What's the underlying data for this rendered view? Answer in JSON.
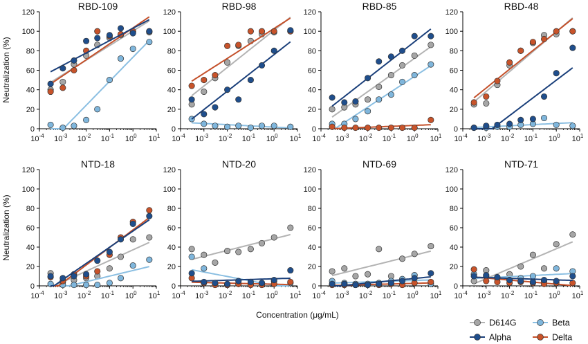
{
  "figure": {
    "ylabel": "Neutralization (%)",
    "xlabel": "Concentration (μg/mL)"
  },
  "series_styles": [
    {
      "name": "D614G",
      "color": "#a6a6a6",
      "line": "#b3b3b3"
    },
    {
      "name": "Alpha",
      "color": "#1f4e8c",
      "line": "#1a3f7a"
    },
    {
      "name": "Beta",
      "color": "#7fb6dc",
      "line": "#8bbfe2"
    },
    {
      "name": "Delta",
      "color": "#c8532a",
      "line": "#c4502a"
    }
  ],
  "legend": {
    "placement": "bottom-right",
    "items": [
      "D614G",
      "Beta",
      "Alpha",
      "Delta"
    ]
  },
  "chart_data": [
    {
      "type": "scatter",
      "title": "RBD-109",
      "xscale": "log",
      "xlim": [
        0.0001,
        10
      ],
      "ylim": [
        0,
        120
      ],
      "x": [
        0.0003,
        0.001,
        0.003,
        0.01,
        0.03,
        0.1,
        0.3,
        1,
        5
      ],
      "series": [
        {
          "name": "D614G",
          "values": [
            40,
            48,
            66,
            75,
            86,
            93,
            96,
            99,
            99
          ]
        },
        {
          "name": "Alpha",
          "values": [
            46,
            62,
            70,
            90,
            93,
            96,
            103,
            98,
            100
          ]
        },
        {
          "name": "Beta",
          "values": [
            4,
            1,
            3,
            9,
            20,
            50,
            72,
            82,
            89
          ]
        },
        {
          "name": "Delta",
          "values": [
            38,
            42,
            60,
            80,
            100,
            95,
            97,
            100,
            100
          ]
        }
      ]
    },
    {
      "type": "scatter",
      "title": "RBD-98",
      "xscale": "log",
      "xlim": [
        0.0001,
        10
      ],
      "ylim": [
        0,
        120
      ],
      "x": [
        0.0003,
        0.001,
        0.003,
        0.01,
        0.03,
        0.1,
        0.3,
        1,
        5
      ],
      "series": [
        {
          "name": "D614G",
          "values": [
            25,
            38,
            52,
            68,
            85,
            90,
            97,
            99,
            100
          ]
        },
        {
          "name": "Alpha",
          "values": [
            30,
            15,
            22,
            40,
            30,
            50,
            65,
            80,
            101
          ]
        },
        {
          "name": "Beta",
          "values": [
            10,
            5,
            3,
            2,
            3,
            1,
            3,
            3,
            2
          ]
        },
        {
          "name": "Delta",
          "values": [
            44,
            50,
            55,
            85,
            86,
            100,
            100,
            100,
            100
          ]
        }
      ]
    },
    {
      "type": "scatter",
      "title": "RBD-85",
      "xscale": "log",
      "xlim": [
        0.0001,
        10
      ],
      "ylim": [
        0,
        120
      ],
      "x": [
        0.0003,
        0.001,
        0.003,
        0.01,
        0.03,
        0.1,
        0.3,
        1,
        5
      ],
      "series": [
        {
          "name": "D614G",
          "values": [
            20,
            22,
            25,
            30,
            43,
            55,
            65,
            75,
            86
          ]
        },
        {
          "name": "Alpha",
          "values": [
            32,
            27,
            28,
            52,
            69,
            74,
            80,
            95,
            95
          ]
        },
        {
          "name": "Beta",
          "values": [
            5,
            5,
            10,
            18,
            30,
            35,
            48,
            55,
            66
          ]
        },
        {
          "name": "Delta",
          "values": [
            2,
            1,
            1,
            1,
            1,
            1,
            1,
            1,
            9
          ]
        }
      ]
    },
    {
      "type": "scatter",
      "title": "RBD-48",
      "xscale": "log",
      "xlim": [
        0.0001,
        10
      ],
      "ylim": [
        0,
        120
      ],
      "x": [
        0.0003,
        0.001,
        0.003,
        0.01,
        0.03,
        0.1,
        0.3,
        1,
        5
      ],
      "series": [
        {
          "name": "D614G",
          "values": [
            25,
            26,
            45,
            65,
            80,
            88,
            96,
            97,
            100
          ]
        },
        {
          "name": "Alpha",
          "values": [
            1,
            3,
            4,
            5,
            9,
            10,
            33,
            57,
            83
          ]
        },
        {
          "name": "Beta",
          "values": [
            1,
            1,
            2,
            2,
            4,
            5,
            11,
            4,
            3
          ]
        },
        {
          "name": "Delta",
          "values": [
            27,
            33,
            49,
            68,
            80,
            89,
            92,
            100,
            100
          ]
        }
      ]
    },
    {
      "type": "scatter",
      "title": "NTD-18",
      "xscale": "log",
      "xlim": [
        0.0001,
        10
      ],
      "ylim": [
        0,
        120
      ],
      "x": [
        0.0003,
        0.001,
        0.003,
        0.01,
        0.03,
        0.1,
        0.3,
        1,
        5
      ],
      "series": [
        {
          "name": "D614G",
          "values": [
            13,
            4,
            6,
            8,
            10,
            18,
            30,
            48,
            50
          ]
        },
        {
          "name": "Alpha",
          "values": [
            10,
            8,
            10,
            12,
            26,
            35,
            48,
            64,
            72
          ]
        },
        {
          "name": "Beta",
          "values": [
            2,
            1,
            1,
            1,
            1,
            3,
            8,
            21,
            27
          ]
        },
        {
          "name": "Delta",
          "values": [
            9,
            5,
            12,
            10,
            15,
            32,
            50,
            66,
            78
          ]
        }
      ]
    },
    {
      "type": "scatter",
      "title": "NTD-20",
      "xscale": "log",
      "xlim": [
        0.0001,
        10
      ],
      "ylim": [
        0,
        120
      ],
      "x": [
        0.0003,
        0.001,
        0.003,
        0.01,
        0.03,
        0.1,
        0.3,
        1,
        5
      ],
      "series": [
        {
          "name": "D614G",
          "values": [
            38,
            32,
            24,
            36,
            35,
            38,
            44,
            50,
            60
          ]
        },
        {
          "name": "Alpha",
          "values": [
            13,
            4,
            3,
            2,
            5,
            4,
            3,
            6,
            16
          ]
        },
        {
          "name": "Beta",
          "values": [
            30,
            18,
            2,
            1,
            2,
            2,
            3,
            5,
            3
          ]
        },
        {
          "name": "Delta",
          "values": [
            8,
            3,
            1,
            1,
            2,
            1,
            1,
            2,
            4
          ]
        }
      ]
    },
    {
      "type": "scatter",
      "title": "NTD-69",
      "xscale": "log",
      "xlim": [
        0.0001,
        10
      ],
      "ylim": [
        0,
        120
      ],
      "x": [
        0.0003,
        0.001,
        0.003,
        0.01,
        0.03,
        0.1,
        0.3,
        1,
        5
      ],
      "series": [
        {
          "name": "D614G",
          "values": [
            15,
            18,
            10,
            12,
            38,
            10,
            28,
            33,
            41
          ]
        },
        {
          "name": "Alpha",
          "values": [
            2,
            2,
            1,
            1,
            2,
            3,
            5,
            8,
            13
          ]
        },
        {
          "name": "Beta",
          "values": [
            5,
            3,
            2,
            2,
            3,
            5,
            7,
            11,
            2
          ]
        },
        {
          "name": "Delta",
          "values": [
            1,
            1,
            1,
            1,
            1,
            2,
            1,
            3,
            4
          ]
        }
      ]
    },
    {
      "type": "scatter",
      "title": "NTD-71",
      "xscale": "log",
      "xlim": [
        0.0001,
        10
      ],
      "ylim": [
        0,
        120
      ],
      "x": [
        0.0003,
        0.001,
        0.003,
        0.01,
        0.03,
        0.1,
        0.3,
        1,
        5
      ],
      "series": [
        {
          "name": "D614G",
          "values": [
            5,
            16,
            8,
            12,
            20,
            32,
            18,
            43,
            53
          ]
        },
        {
          "name": "Alpha",
          "values": [
            10,
            11,
            9,
            6,
            5,
            4,
            6,
            5,
            10
          ]
        },
        {
          "name": "Beta",
          "values": [
            12,
            10,
            7,
            6,
            8,
            10,
            5,
            18,
            15
          ]
        },
        {
          "name": "Delta",
          "values": [
            17,
            5,
            4,
            3,
            4,
            3,
            2,
            3,
            3
          ]
        }
      ]
    }
  ]
}
